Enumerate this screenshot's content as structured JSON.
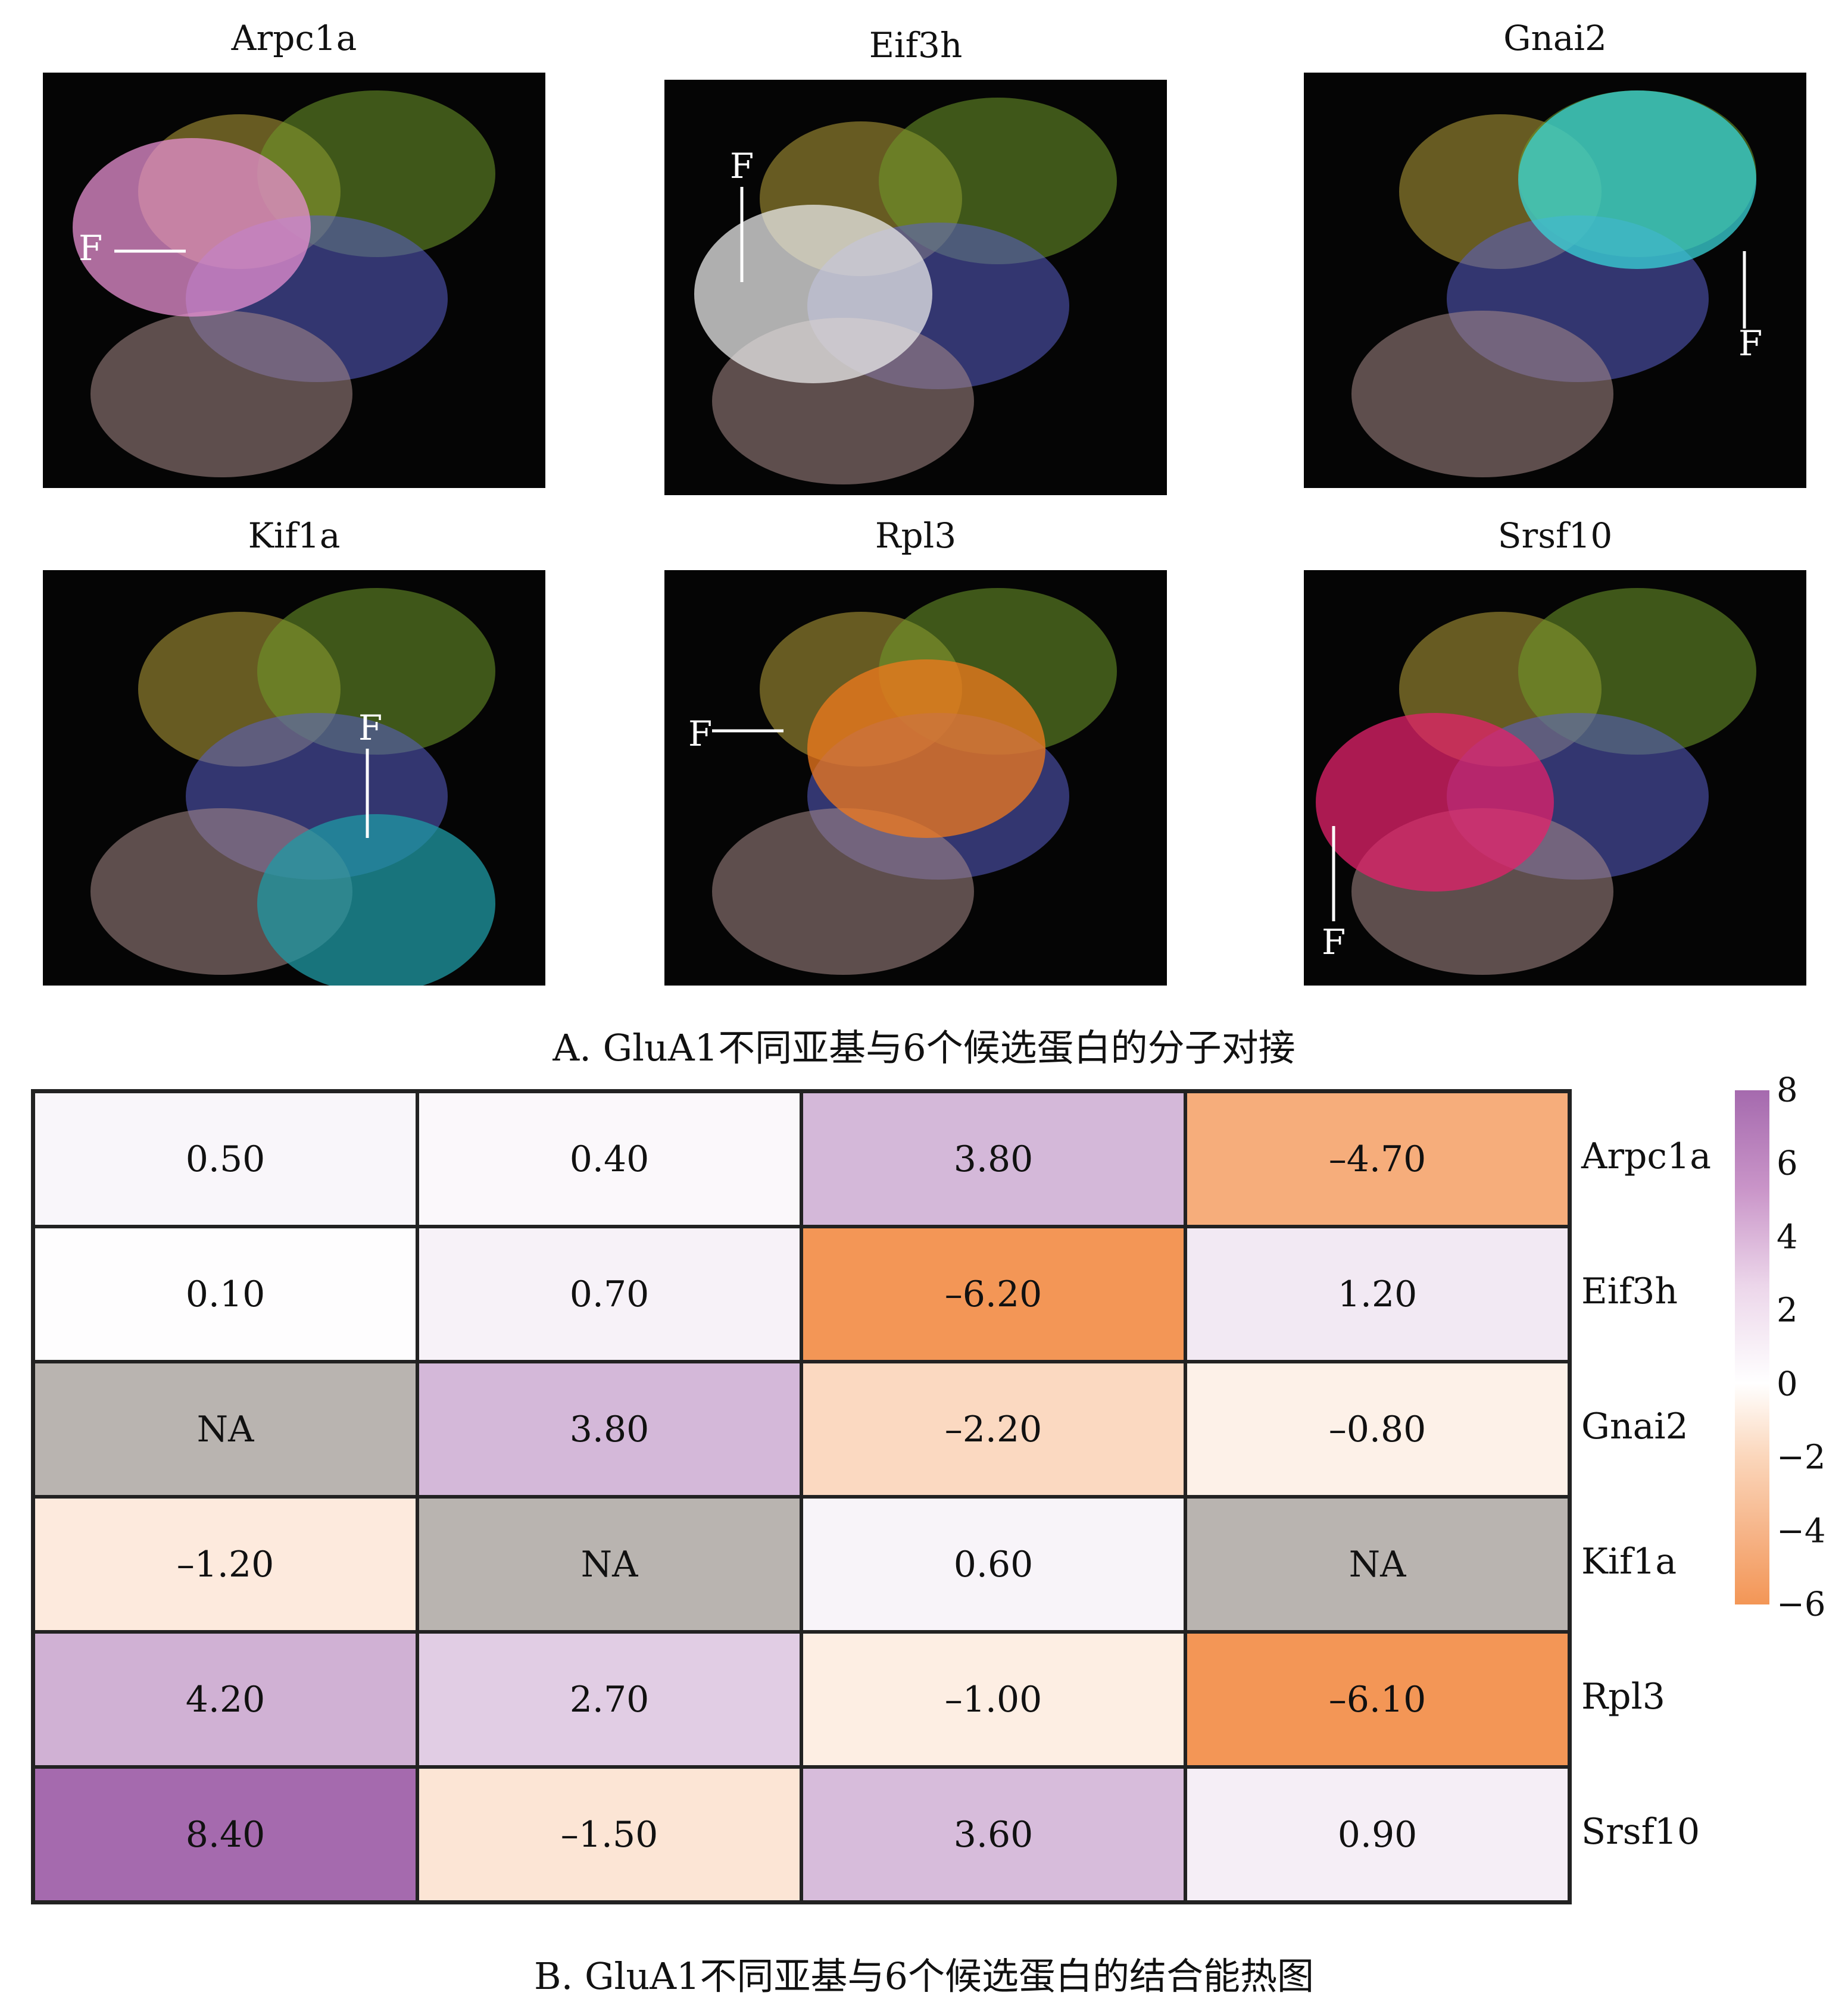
{
  "panel_a": {
    "caption": "A. GluA1不同亚基与6个候选蛋白的分子对接",
    "label_f": "F",
    "images": [
      {
        "title": "Arpc1a",
        "highlight": "#e58fd0"
      },
      {
        "title": "Eif3h",
        "highlight": "#e8e8e8"
      },
      {
        "title": "Gnai2",
        "highlight": "#3ad4d8"
      },
      {
        "title": "Kif1a",
        "highlight": "#1f9aa4"
      },
      {
        "title": "Rpl3",
        "highlight": "#f07a1e"
      },
      {
        "title": "Srsf10",
        "highlight": "#e3216b"
      }
    ]
  },
  "panel_b": {
    "caption": "B. GluA1不同亚基与6个候选蛋白的结合能热图"
  },
  "chart_data": {
    "type": "heatmap",
    "rows": [
      "Arpc1a",
      "Eif3h",
      "Gnai2",
      "Kif1a",
      "Rpl3",
      "Srsf10"
    ],
    "columns": [
      "",
      "",
      "",
      ""
    ],
    "values": [
      [
        0.5,
        0.4,
        3.8,
        -4.7
      ],
      [
        0.1,
        0.7,
        -6.2,
        1.2
      ],
      [
        null,
        3.8,
        -2.2,
        -0.8
      ],
      [
        -1.2,
        null,
        0.6,
        null
      ],
      [
        4.2,
        2.7,
        -1.0,
        -6.1
      ],
      [
        8.4,
        -1.5,
        3.6,
        0.9
      ]
    ],
    "display": [
      [
        "0.50",
        "0.40",
        "3.80",
        "–4.70"
      ],
      [
        "0.10",
        "0.70",
        "–6.20",
        "1.20"
      ],
      [
        "NA",
        "3.80",
        "–2.20",
        "–0.80"
      ],
      [
        "–1.20",
        "NA",
        "0.60",
        "NA"
      ],
      [
        "4.20",
        "2.70",
        "–1.00",
        "–6.10"
      ],
      [
        "8.40",
        "–1.50",
        "3.60",
        "0.90"
      ]
    ],
    "na_color": "#b9b4b0",
    "colorbar": {
      "range": [
        -6,
        8
      ],
      "ticks": [
        8,
        6,
        4,
        2,
        0,
        -2,
        -4,
        -6
      ],
      "tick_labels": [
        "8",
        "6",
        "4",
        "2",
        "0",
        "−2",
        "−4",
        "−6"
      ],
      "colors": {
        "low": "#f39656",
        "mid": "#ffffff",
        "high": "#a56aae"
      }
    },
    "legend_position": "right"
  }
}
